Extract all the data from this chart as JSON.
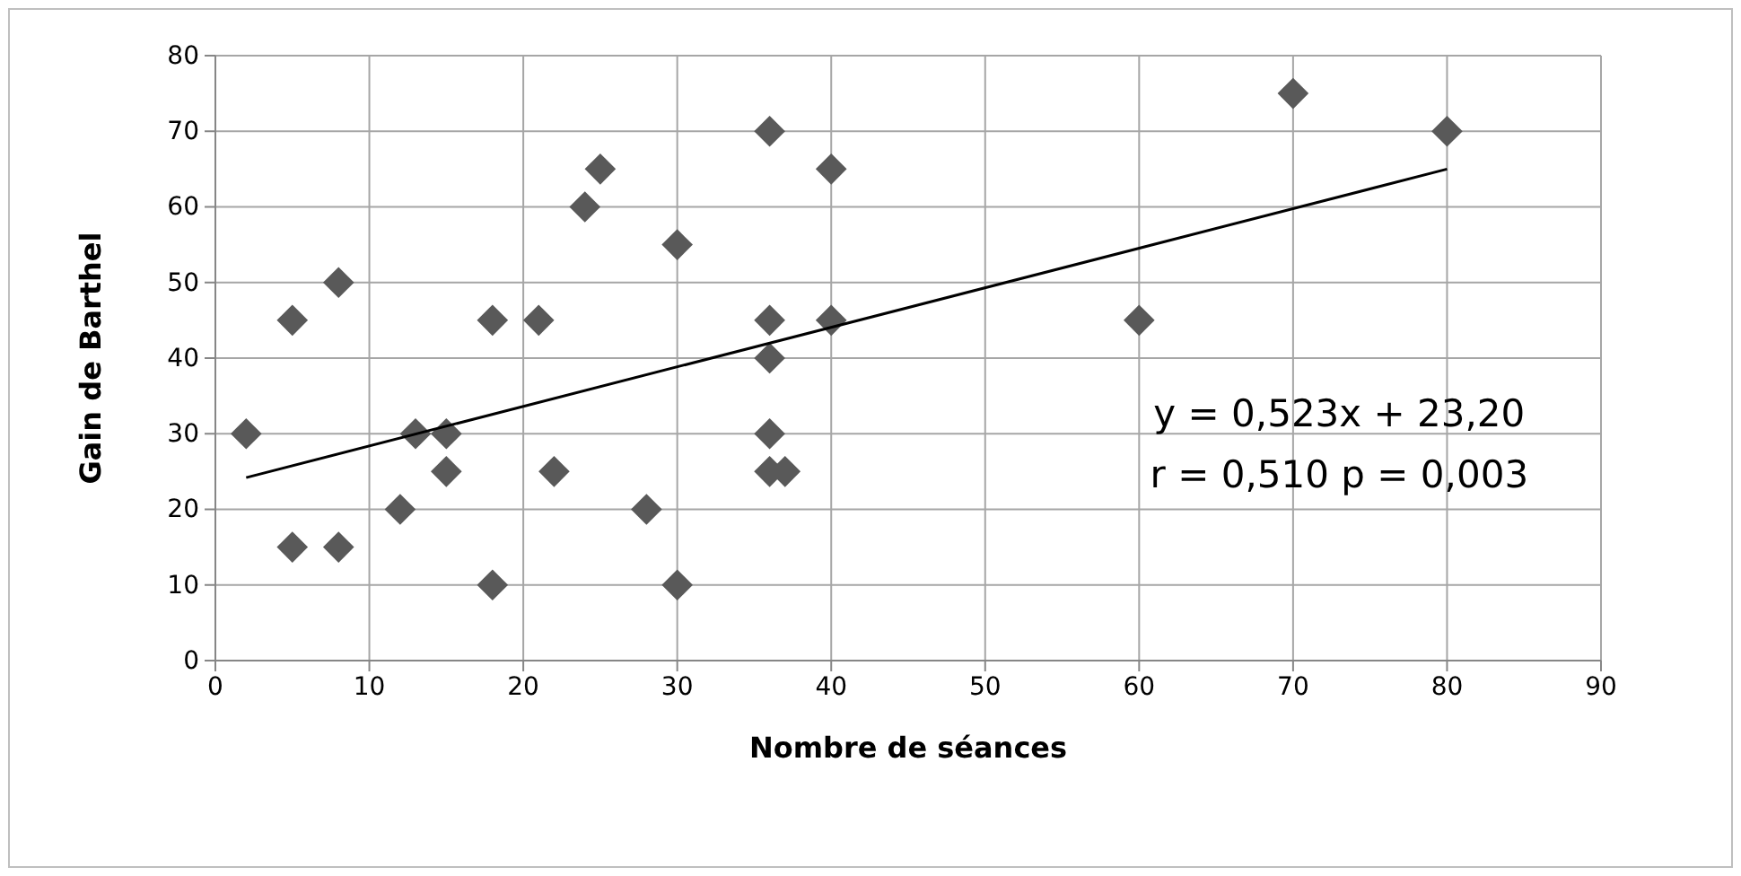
{
  "chart_data": {
    "type": "scatter",
    "xlabel": "Nombre de séances",
    "ylabel": "Gain de Barthel",
    "xlim": [
      0,
      90
    ],
    "xticks": [
      0,
      10,
      20,
      30,
      40,
      50,
      60,
      70,
      80,
      90
    ],
    "ylim": [
      0,
      80
    ],
    "yticks": [
      0,
      10,
      20,
      30,
      40,
      50,
      60,
      70,
      80
    ],
    "grid": true,
    "series": [
      {
        "marker": "diamond",
        "color": "#595959",
        "x": [
          2,
          5,
          5,
          8,
          8,
          12,
          13,
          15,
          15,
          18,
          18,
          21,
          22,
          24,
          25,
          28,
          30,
          30,
          36,
          36,
          36,
          36,
          36,
          37,
          40,
          40,
          60,
          70,
          80
        ],
        "values": [
          30,
          45,
          15,
          50,
          15,
          20,
          30,
          30,
          25,
          45,
          10,
          45,
          25,
          60,
          65,
          20,
          55,
          10,
          70,
          45,
          40,
          30,
          25,
          25,
          65,
          45,
          45,
          75,
          70
        ]
      },
      {
        "type": "line",
        "color": "#000000",
        "x": [
          2,
          80
        ],
        "values": [
          24.2,
          65.0
        ]
      }
    ],
    "annotations": [
      "y = 0,523x + 23,20",
      "r = 0,510  p = 0,003"
    ]
  }
}
